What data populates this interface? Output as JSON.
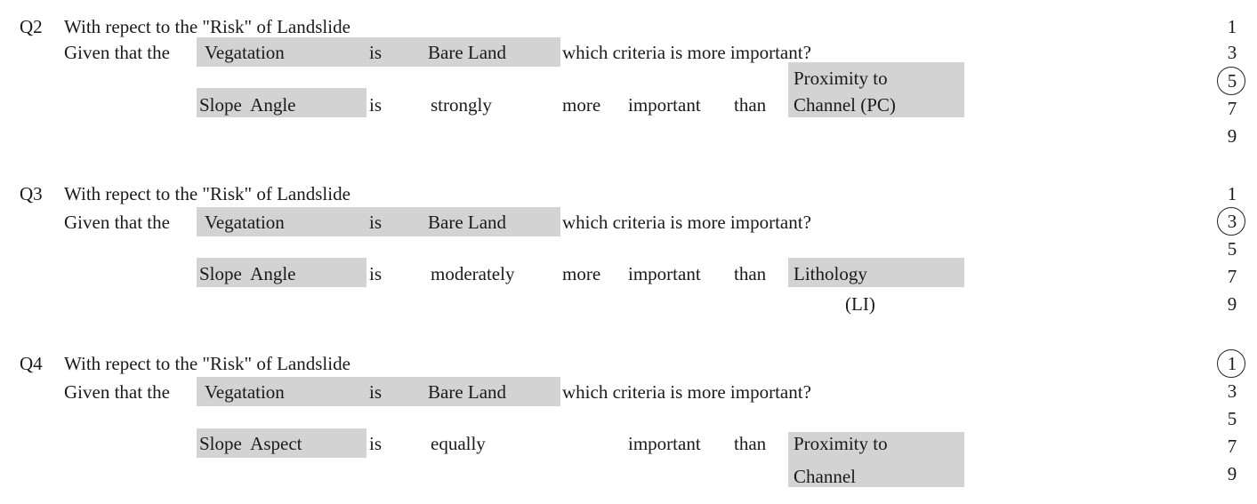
{
  "questions": [
    {
      "id": "Q2",
      "header": "With repect to the \"Risk\" of Landslide",
      "given_prefix": "Given that the",
      "given_criterion": "Vegatation",
      "given_is": "is",
      "given_value": "Bare Land",
      "given_suffix": "which criteria is more important?",
      "left_criterion": "Slope  Angle",
      "is_word": "is",
      "intensity": "strongly",
      "more_word": "more",
      "important_word": "important",
      "than_word": "than",
      "right_criterion_lines": [
        "Proximity to",
        "Channel (PC)"
      ],
      "scale": [
        "1",
        "3",
        "5",
        "7",
        "9"
      ],
      "selected": "5"
    },
    {
      "id": "Q3",
      "header": "With repect to the \"Risk\" of Landslide",
      "given_prefix": "Given that the",
      "given_criterion": "Vegatation",
      "given_is": "is",
      "given_value": "Bare Land",
      "given_suffix": "which criteria is more important?",
      "left_criterion": "Slope  Angle",
      "is_word": "is",
      "intensity": "moderately",
      "more_word": "more",
      "important_word": "important",
      "than_word": "than",
      "right_criterion_lines": [
        "Lithology",
        "(LI)"
      ],
      "scale": [
        "1",
        "3",
        "5",
        "7",
        "9"
      ],
      "selected": "3"
    },
    {
      "id": "Q4",
      "header": "With repect to the \"Risk\" of Landslide",
      "given_prefix": "Given that the",
      "given_criterion": "Vegatation",
      "given_is": "is",
      "given_value": "Bare Land",
      "given_suffix": "which criteria is more important?",
      "left_criterion": "Slope  Aspect",
      "is_word": "is",
      "intensity": "equally",
      "more_word": "",
      "important_word": "important",
      "than_word": "than",
      "right_criterion_lines": [
        "Proximity to",
        "Channel"
      ],
      "scale": [
        "1",
        "3",
        "5",
        "7",
        "9"
      ],
      "selected": "1"
    }
  ]
}
